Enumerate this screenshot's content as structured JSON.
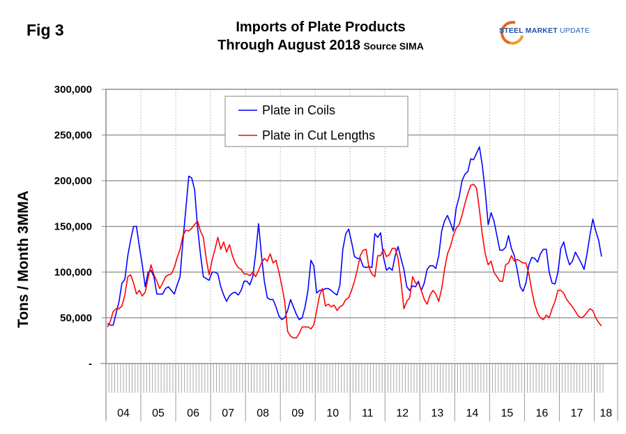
{
  "header": {
    "fig_label": "Fig 3",
    "title_line1": "Imports of Plate Products",
    "title_line2": "Through August 2018",
    "source": "Source SIMA",
    "logo_bold": "STEEL MARKET",
    "logo_thin": "UPDATE"
  },
  "chart_data": {
    "type": "line",
    "title": "Imports of Plate Products Through August 2018",
    "subtitle": "Source SIMA",
    "xlabel": "",
    "ylabel": "Tons / Month 3MMA",
    "ylim": [
      0,
      300000
    ],
    "yticks": [
      0,
      50000,
      100000,
      150000,
      200000,
      250000,
      300000
    ],
    "ytick_labels": [
      "-",
      "50,000",
      "100,000",
      "150,000",
      "200,000",
      "250,000",
      "300,000"
    ],
    "x_start": "2004-01",
    "x_end": "2018-08",
    "x_frequency": "monthly",
    "year_labels": [
      "04",
      "05",
      "06",
      "07",
      "08",
      "09",
      "10",
      "11",
      "12",
      "13",
      "14",
      "15",
      "16",
      "17",
      "18"
    ],
    "grid": "horizontal solid, vertical dotted at year boundaries",
    "legend_position": "top-center",
    "colors": {
      "Plate in Coils": "#0000ff",
      "Plate in Cut Lengths": "#ff0000"
    },
    "series": [
      {
        "name": "Plate in Coils",
        "values": [
          44000,
          42000,
          42000,
          55000,
          68000,
          88000,
          92000,
          118000,
          135000,
          150000,
          150000,
          128000,
          108000,
          84000,
          100000,
          102000,
          95000,
          76000,
          76000,
          76000,
          82000,
          84000,
          80000,
          76000,
          86000,
          95000,
          135000,
          170000,
          205000,
          203000,
          190000,
          150000,
          120000,
          95000,
          93000,
          91000,
          100000,
          100000,
          98000,
          84000,
          75000,
          68000,
          74000,
          77000,
          78000,
          75000,
          80000,
          90000,
          90000,
          86000,
          95000,
          120000,
          153000,
          118000,
          90000,
          72000,
          70000,
          70000,
          62000,
          52000,
          48000,
          50000,
          58000,
          70000,
          62000,
          54000,
          48000,
          50000,
          62000,
          80000,
          113000,
          107000,
          77000,
          80000,
          80000,
          82000,
          82000,
          80000,
          77000,
          75000,
          86000,
          125000,
          142000,
          147000,
          133000,
          117000,
          115000,
          115000,
          106000,
          105000,
          106000,
          105000,
          142000,
          138000,
          143000,
          116000,
          102000,
          105000,
          102000,
          118000,
          128000,
          115000,
          103000,
          84000,
          80000,
          85000,
          84000,
          90000,
          80000,
          88000,
          103000,
          107000,
          107000,
          104000,
          118000,
          145000,
          156000,
          162000,
          154000,
          145000,
          170000,
          182000,
          200000,
          207000,
          210000,
          224000,
          223000,
          230000,
          237000,
          216000,
          188000,
          152000,
          165000,
          156000,
          140000,
          124000,
          124000,
          127000,
          140000,
          126000,
          118000,
          102000,
          84000,
          79000,
          88000,
          108000,
          116000,
          115000,
          111000,
          120000,
          125000,
          125000,
          100000,
          88000,
          87000,
          100000,
          126000,
          133000,
          118000,
          108000,
          112000,
          122000,
          116000,
          110000,
          103000,
          120000,
          140000,
          158000,
          145000,
          135000,
          117000
        ]
      },
      {
        "name": "Plate in Cut Lengths",
        "values": [
          40000,
          46000,
          57000,
          60000,
          60000,
          63000,
          75000,
          95000,
          97000,
          88000,
          76000,
          80000,
          74000,
          78000,
          94000,
          108000,
          97000,
          90000,
          82000,
          88000,
          95000,
          97000,
          98000,
          105000,
          116000,
          125000,
          140000,
          146000,
          145000,
          148000,
          152000,
          156000,
          145000,
          138000,
          115000,
          97000,
          113000,
          125000,
          138000,
          125000,
          133000,
          122000,
          130000,
          118000,
          110000,
          105000,
          103000,
          98000,
          98000,
          96000,
          100000,
          95000,
          102000,
          110000,
          115000,
          112000,
          120000,
          110000,
          113000,
          100000,
          85000,
          68000,
          35000,
          30000,
          28000,
          28000,
          33000,
          40000,
          40000,
          40000,
          38000,
          42000,
          58000,
          75000,
          82000,
          63000,
          65000,
          62000,
          64000,
          58000,
          62000,
          64000,
          70000,
          72000,
          80000,
          90000,
          103000,
          118000,
          124000,
          125000,
          105000,
          98000,
          95000,
          118000,
          118000,
          125000,
          117000,
          119000,
          126000,
          126000,
          115000,
          90000,
          60000,
          68000,
          72000,
          95000,
          88000,
          88000,
          80000,
          70000,
          65000,
          75000,
          80000,
          76000,
          68000,
          82000,
          103000,
          120000,
          128000,
          140000,
          148000,
          152000,
          162000,
          175000,
          186000,
          195000,
          196000,
          192000,
          168000,
          140000,
          120000,
          108000,
          112000,
          100000,
          95000,
          90000,
          90000,
          108000,
          110000,
          118000,
          112000,
          114000,
          112000,
          110000,
          110000,
          98000,
          80000,
          65000,
          55000,
          50000,
          48000,
          53000,
          50000,
          60000,
          68000,
          80000,
          80000,
          77000,
          70000,
          66000,
          62000,
          57000,
          52000,
          50000,
          52000,
          56000,
          60000,
          58000,
          50000,
          45000,
          41000
        ]
      }
    ]
  }
}
